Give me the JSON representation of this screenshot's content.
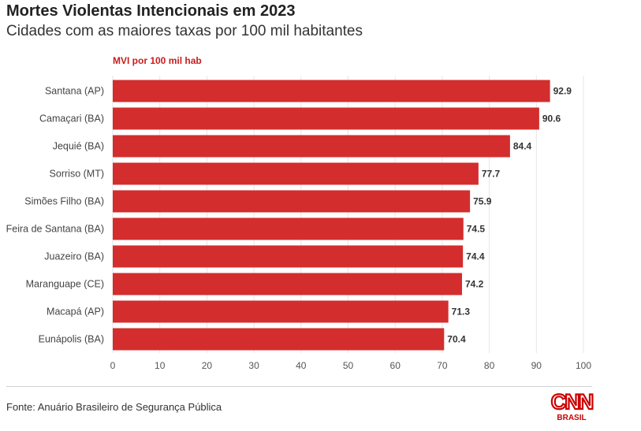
{
  "title": "Mortes Violentas Intencionais em 2023",
  "subtitle": "Cidades com as maiores taxas por 100 mil habitantes",
  "series_label": "MVI por 100 mil hab",
  "source": "Fonte: Anuário Brasileiro de Segurança Pública",
  "logo": {
    "text": "CNN",
    "subtext": "BRASIL",
    "color": "#cc0000"
  },
  "chart_data": {
    "type": "bar",
    "orientation": "horizontal",
    "categories": [
      "Santana (AP)",
      "Camaçari (BA)",
      "Jequié (BA)",
      "Sorriso (MT)",
      "Simões Filho (BA)",
      "Feira de Santana (BA)",
      "Juazeiro (BA)",
      "Maranguape (CE)",
      "Macapá (AP)",
      "Eunápolis (BA)"
    ],
    "series": [
      {
        "name": "MVI por 100 mil hab",
        "values": [
          92.9,
          90.6,
          84.4,
          77.7,
          75.9,
          74.5,
          74.4,
          74.2,
          71.3,
          70.4
        ]
      }
    ],
    "xlim": [
      0,
      100
    ],
    "xticks": [
      0,
      10,
      20,
      30,
      40,
      50,
      60,
      70,
      80,
      90,
      100
    ],
    "grid": true,
    "bar_color": "#d42d2d"
  }
}
